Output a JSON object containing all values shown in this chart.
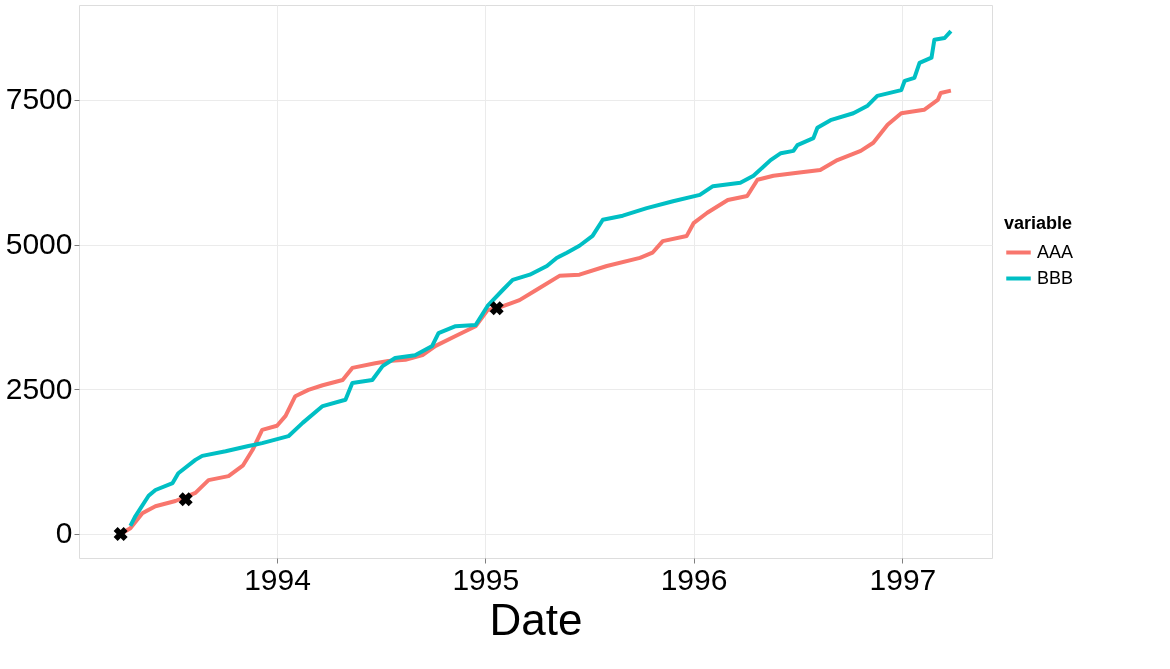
{
  "chart_data": {
    "type": "line",
    "xlabel": "Date",
    "legend_title": "variable",
    "legend": "right",
    "grid": true,
    "xlim": [
      "1993-01-19",
      "1997-06-07"
    ],
    "xticks": [
      "1994",
      "1995",
      "1996",
      "1997"
    ],
    "ylim": [
      -415,
      9140
    ],
    "yticks": [
      0,
      2500,
      5000,
      7500
    ],
    "series": [
      {
        "name": "AAA",
        "color": "#f8766d",
        "x": [
          "1993-04-02",
          "1993-04-19",
          "1993-05-10",
          "1993-06-02",
          "1993-07-07",
          "1993-08-11",
          "1993-09-03",
          "1993-10-08",
          "1993-11-02",
          "1993-11-19",
          "1993-12-06",
          "1994-01-01",
          "1994-01-16",
          "1994-02-02",
          "1994-02-25",
          "1994-03-22",
          "1994-04-26",
          "1994-05-13",
          "1994-06-22",
          "1994-07-15",
          "1994-08-14",
          "1994-09-13",
          "1994-10-06",
          "1994-11-10",
          "1994-12-15",
          "1995-01-05",
          "1995-01-21",
          "1995-03-02",
          "1995-04-01",
          "1995-05-11",
          "1995-06-15",
          "1995-08-02",
          "1995-09-29",
          "1995-10-21",
          "1995-11-08",
          "1995-12-20",
          "1996-01-01",
          "1996-01-25",
          "1996-03-01",
          "1996-04-04",
          "1996-04-22",
          "1996-05-20",
          "1996-07-01",
          "1996-08-10",
          "1996-09-09",
          "1996-10-20",
          "1996-11-11",
          "1996-12-06",
          "1996-12-30",
          "1997-02-08",
          "1997-03-04",
          "1997-03-09",
          "1997-03-27"
        ],
        "values": [
          0,
          100,
          360,
          480,
          570,
          710,
          930,
          1000,
          1180,
          1450,
          1800,
          1870,
          2040,
          2380,
          2490,
          2570,
          2660,
          2870,
          2950,
          2990,
          3010,
          3090,
          3250,
          3420,
          3590,
          3870,
          3900,
          4040,
          4220,
          4460,
          4480,
          4630,
          4770,
          4860,
          5060,
          5150,
          5370,
          5550,
          5770,
          5840,
          6120,
          6190,
          6240,
          6290,
          6460,
          6620,
          6760,
          7070,
          7270,
          7330,
          7500,
          7620,
          7660
        ]
      },
      {
        "name": "BBB",
        "color": "#00bfc4",
        "x": [
          "1993-04-19",
          "1993-04-28",
          "1993-05-21",
          "1993-06-02",
          "1993-07-02",
          "1993-07-12",
          "1993-08-11",
          "1993-08-23",
          "1993-10-03",
          "1993-11-12",
          "1993-12-06",
          "1994-01-21",
          "1994-02-15",
          "1994-03-22",
          "1994-05-01",
          "1994-05-13",
          "1994-06-17",
          "1994-07-05",
          "1994-07-27",
          "1994-08-31",
          "1994-09-30",
          "1994-10-11",
          "1994-11-10",
          "1994-12-15",
          "1995-01-05",
          "1995-02-01",
          "1995-02-18",
          "1995-03-20",
          "1995-04-19",
          "1995-05-06",
          "1995-05-24",
          "1995-06-15",
          "1995-07-08",
          "1995-07-26",
          "1995-08-30",
          "1995-10-11",
          "1995-11-26",
          "1996-01-12",
          "1996-02-04",
          "1996-03-23",
          "1996-04-15",
          "1996-05-15",
          "1996-06-02",
          "1996-06-24",
          "1996-07-01",
          "1996-07-29",
          "1996-08-05",
          "1996-08-28",
          "1996-10-07",
          "1996-11-01",
          "1996-11-18",
          "1996-12-30",
          "1997-01-05",
          "1997-01-22",
          "1997-01-31",
          "1997-02-21",
          "1997-02-26",
          "1997-03-16",
          "1997-03-27"
        ],
        "values": [
          140,
          310,
          660,
          760,
          880,
          1050,
          1280,
          1350,
          1430,
          1520,
          1570,
          1690,
          1920,
          2210,
          2320,
          2610,
          2660,
          2900,
          3040,
          3090,
          3250,
          3470,
          3590,
          3610,
          3940,
          4220,
          4390,
          4480,
          4630,
          4770,
          4860,
          4980,
          5150,
          5430,
          5500,
          5630,
          5750,
          5860,
          6010,
          6070,
          6190,
          6460,
          6580,
          6620,
          6720,
          6840,
          7020,
          7150,
          7270,
          7400,
          7570,
          7670,
          7830,
          7880,
          8140,
          8230,
          8540,
          8570,
          8690
        ]
      },
      {
        "type": "scatter",
        "marker": "cross",
        "color": "#000000",
        "x": [
          "1993-04-02",
          "1993-07-25",
          "1995-01-21"
        ],
        "values": [
          0,
          600,
          3900
        ]
      }
    ]
  }
}
